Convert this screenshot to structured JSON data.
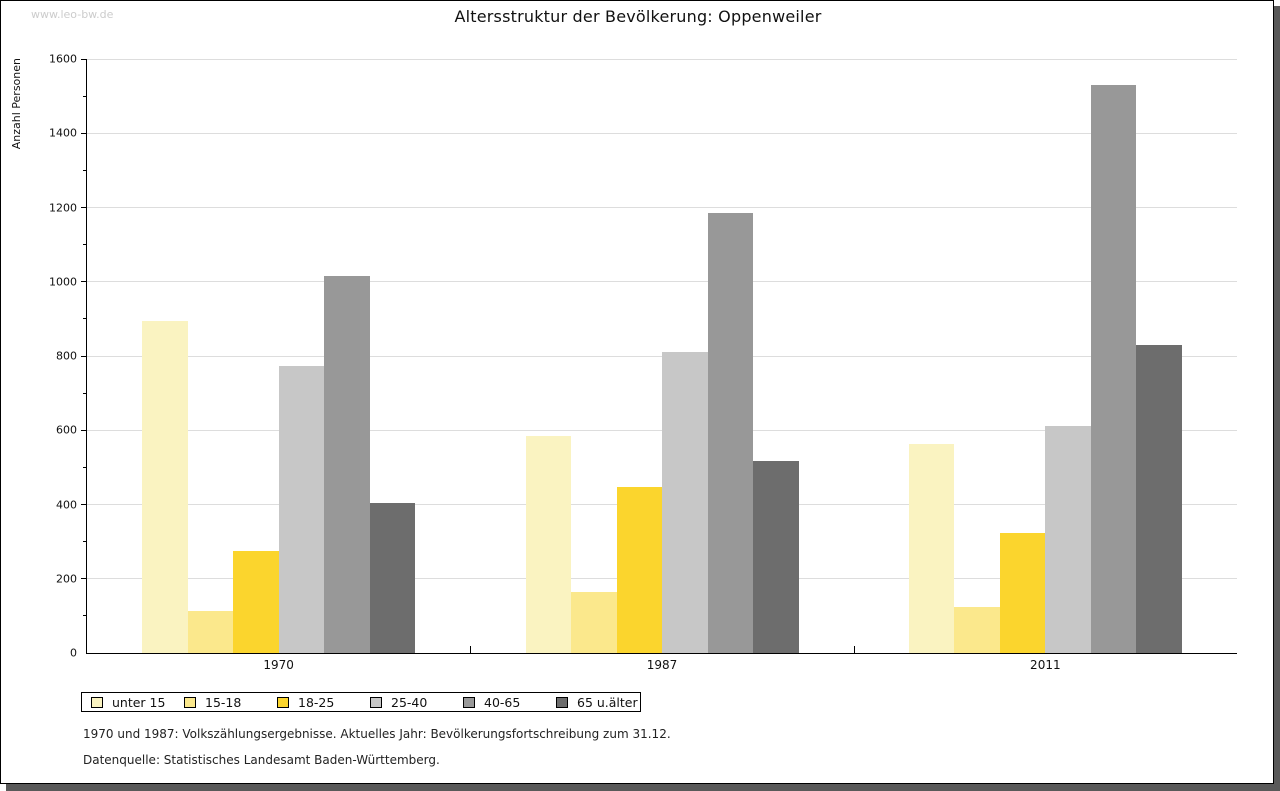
{
  "watermark": "www.leo-bw.de",
  "header": {
    "title": "Altersstruktur der Bevölkerung: Oppenweiler"
  },
  "footnotes": {
    "line1": "1970 und 1987: Volkszählungsergebnisse. Aktuelles Jahr: Bevölkerungsfortschreibung zum 31.12.",
    "line2": "Datenquelle: Statistisches Landesamt Baden-Württemberg."
  },
  "frame_colors": {
    "border": "#000000",
    "shadow": "#595959",
    "gridline": "#dddddd"
  },
  "chart_data": {
    "type": "bar",
    "title": "Altersstruktur der Bevölkerung: Oppenweiler",
    "xlabel": "",
    "ylabel": "Anzahl Personen",
    "ylim": [
      0,
      1600
    ],
    "ytick_step": 200,
    "ytick_minor_step": 100,
    "grid": "horizontal-major-only",
    "legend_position": "bottom-left-boxed",
    "categories": [
      "1970",
      "1987",
      "2011"
    ],
    "series": [
      {
        "name": "unter 15",
        "color": "#FAF3C1",
        "values": [
          895,
          585,
          562
        ]
      },
      {
        "name": "15-18",
        "color": "#FBE88C",
        "values": [
          113,
          165,
          124
        ]
      },
      {
        "name": "18-25",
        "color": "#FBD52D",
        "values": [
          275,
          448,
          323
        ]
      },
      {
        "name": "25-40",
        "color": "#C7C7C7",
        "values": [
          772,
          810,
          611
        ]
      },
      {
        "name": "40-65",
        "color": "#989898",
        "values": [
          1015,
          1185,
          1530
        ]
      },
      {
        "name": "65 u.älter",
        "color": "#6D6D6D",
        "values": [
          405,
          517,
          830
        ]
      }
    ]
  }
}
